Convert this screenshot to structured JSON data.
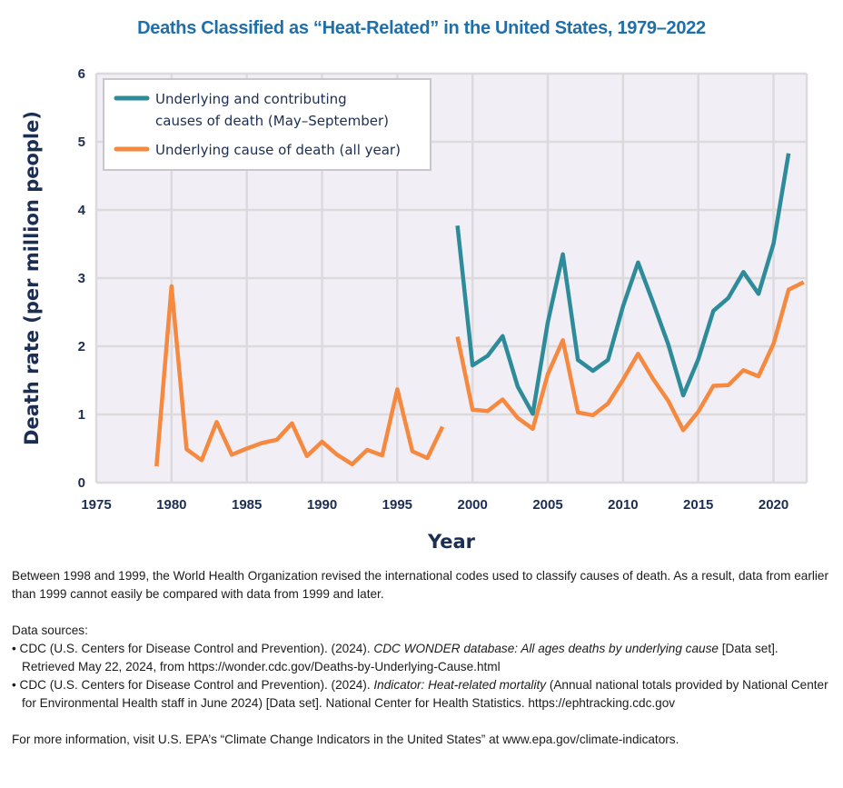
{
  "chart_data": {
    "type": "line",
    "title": "Deaths Classified as “Heat-Related” in the United States, 1979–2022",
    "xlabel": "Year",
    "ylabel": "Death rate (per million people)",
    "xlim": [
      1975,
      2022.2
    ],
    "ylim": [
      0,
      6
    ],
    "xticks": [
      1975,
      1980,
      1985,
      1990,
      1995,
      2000,
      2005,
      2010,
      2015,
      2020
    ],
    "yticks": [
      0,
      1,
      2,
      3,
      4,
      5,
      6
    ],
    "grid": true,
    "legend_position": "top-left",
    "colors": {
      "teal": "#2e8b99",
      "orange": "#f5893f",
      "grid": "#dcdadd",
      "plot_bg": "#f1eef5",
      "axis_text": "#1c2e52",
      "title": "#1f6fa8"
    },
    "series": [
      {
        "name": "Underlying and contributing causes of death (May–September)",
        "legend_lines": [
          "Underlying and contributing",
          "causes of death (May–September)"
        ],
        "color": "#2e8b99",
        "segments": [
          {
            "x": [
              1999,
              2000,
              2001,
              2002,
              2003,
              2004,
              2005,
              2006,
              2007,
              2008,
              2009,
              2010,
              2011,
              2012,
              2013,
              2014,
              2015,
              2016,
              2017,
              2018,
              2019,
              2020,
              2021
            ],
            "y": [
              3.77,
              1.72,
              1.86,
              2.15,
              1.41,
              1.01,
              2.35,
              3.35,
              1.8,
              1.64,
              1.8,
              2.59,
              3.23,
              2.64,
              2.03,
              1.28,
              1.81,
              2.52,
              2.71,
              3.09,
              2.77,
              3.51,
              4.83
            ]
          }
        ]
      },
      {
        "name": "Underlying cause of death (all year)",
        "legend_lines": [
          "Underlying cause of death (all year)"
        ],
        "color": "#f5893f",
        "segments": [
          {
            "x": [
              1979,
              1980,
              1981,
              1982,
              1983,
              1984,
              1985,
              1986,
              1987,
              1988,
              1989,
              1990,
              1991,
              1992,
              1993,
              1994,
              1995,
              1996,
              1997,
              1998
            ],
            "y": [
              0.24,
              2.88,
              0.49,
              0.33,
              0.89,
              0.41,
              0.5,
              0.58,
              0.63,
              0.87,
              0.39,
              0.6,
              0.41,
              0.27,
              0.48,
              0.4,
              1.37,
              0.46,
              0.36,
              0.82
            ]
          },
          {
            "x": [
              1999,
              2000,
              2001,
              2002,
              2003,
              2004,
              2005,
              2006,
              2007,
              2008,
              2009,
              2010,
              2011,
              2012,
              2013,
              2014,
              2015,
              2016,
              2017,
              2018,
              2019,
              2020,
              2021,
              2022
            ],
            "y": [
              2.14,
              1.07,
              1.05,
              1.22,
              0.95,
              0.79,
              1.59,
              2.09,
              1.03,
              0.99,
              1.16,
              1.51,
              1.89,
              1.52,
              1.2,
              0.77,
              1.04,
              1.42,
              1.43,
              1.65,
              1.56,
              2.04,
              2.83,
              2.94
            ]
          }
        ]
      }
    ]
  },
  "notes": {
    "paragraph": "Between 1998 and 1999, the World Health Organization revised the international codes used to classify causes of death. As a result, data from earlier than 1999 cannot easily be compared with data from 1999 and later.",
    "sources_heading": "Data sources:",
    "sources": [
      {
        "bullet": "• ",
        "lead": "CDC (U.S. Centers for Disease Control and Prevention). (2024). ",
        "italic": "CDC WONDER database: All ages deaths by underlying cause",
        "tail": " [Data set]. Retrieved May 22, 2024, from https://wonder.cdc.gov/Deaths-by-Underlying-Cause.html"
      },
      {
        "bullet": "• ",
        "lead": "CDC (U.S. Centers for Disease Control and Prevention). (2024). ",
        "italic": "Indicator: Heat-related mortality",
        "tail": " (Annual national totals provided by National Center for Environmental Health staff in June 2024) [Data set]. National Center for Health Statistics. https://ephtracking.cdc.gov"
      }
    ],
    "more_info": "For more information, visit U.S. EPA’s “Climate Change Indicators in the United States” at www.epa.gov/climate-indicators."
  }
}
